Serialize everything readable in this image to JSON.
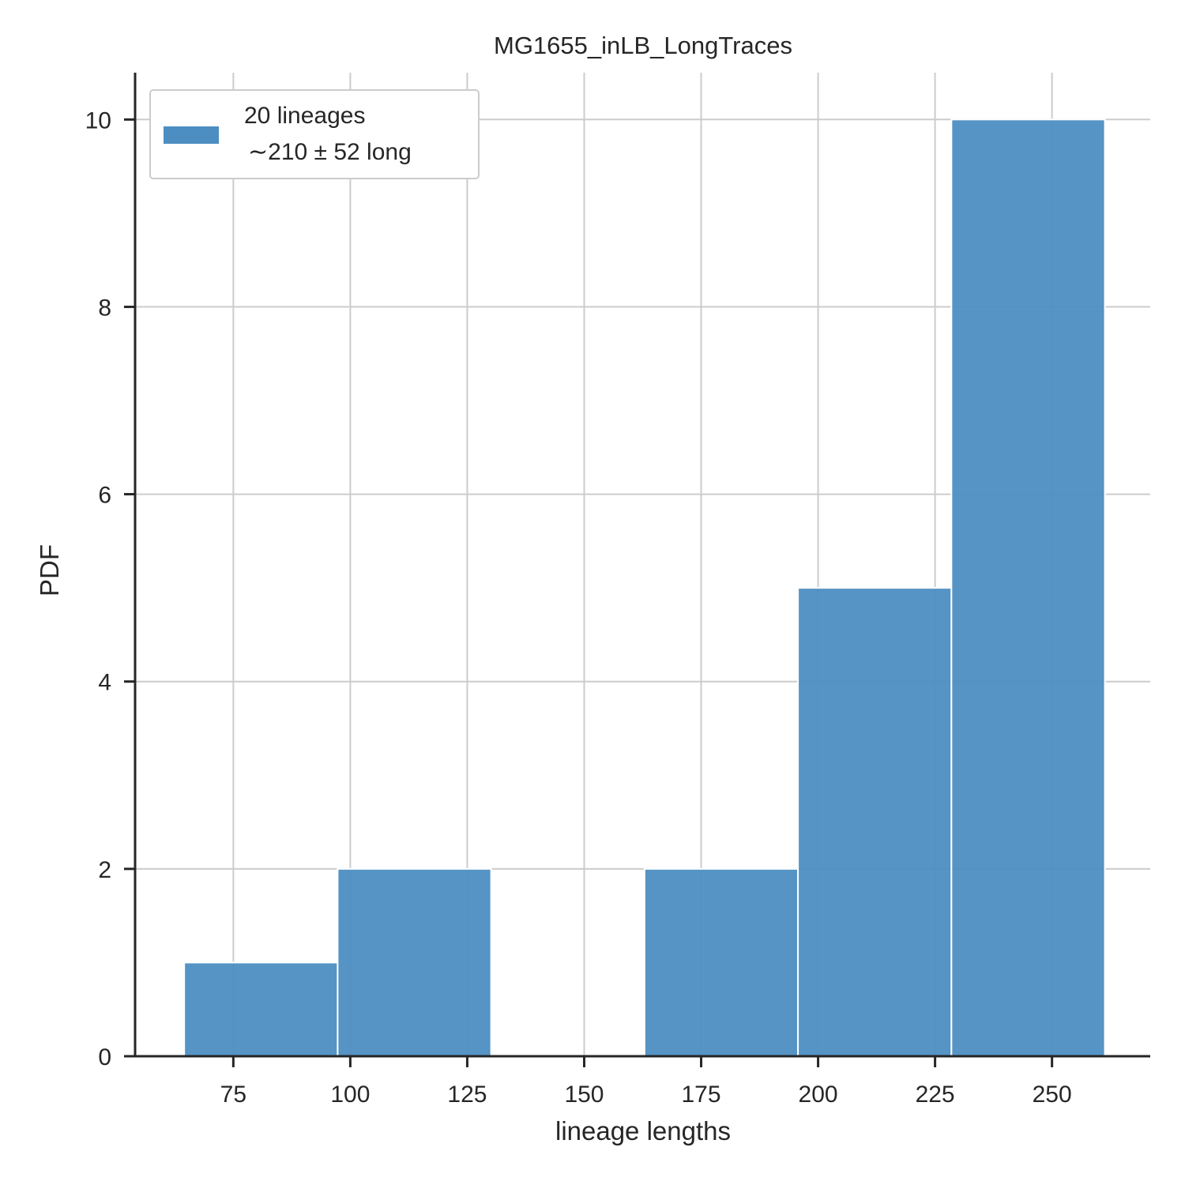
{
  "chart_data": {
    "type": "bar",
    "title": "MG1655_inLB_LongTraces",
    "xlabel": "lineage lengths",
    "ylabel": "PDF",
    "xlim": [
      54,
      271
    ],
    "ylim": [
      0,
      10.5
    ],
    "x_ticks": [
      75,
      100,
      125,
      150,
      175,
      200,
      225,
      250
    ],
    "y_ticks": [
      0,
      2,
      4,
      6,
      8,
      10
    ],
    "grid": true,
    "bins": [
      {
        "x0": 64.5,
        "x1": 97.3,
        "value": 1
      },
      {
        "x0": 97.3,
        "x1": 130.1,
        "value": 2
      },
      {
        "x0": 130.1,
        "x1": 162.9,
        "value": 0
      },
      {
        "x0": 162.9,
        "x1": 195.7,
        "value": 2
      },
      {
        "x0": 195.7,
        "x1": 228.5,
        "value": 5
      },
      {
        "x0": 228.5,
        "x1": 261.3,
        "value": 10
      }
    ],
    "series": [
      {
        "name": "20 lineages\n ~210 ± 52 long",
        "color": "#4c8ec2"
      }
    ],
    "legend": {
      "placement": "top-left",
      "line1": "20 lineages",
      "line2": "∼210 ± 52 long"
    }
  }
}
